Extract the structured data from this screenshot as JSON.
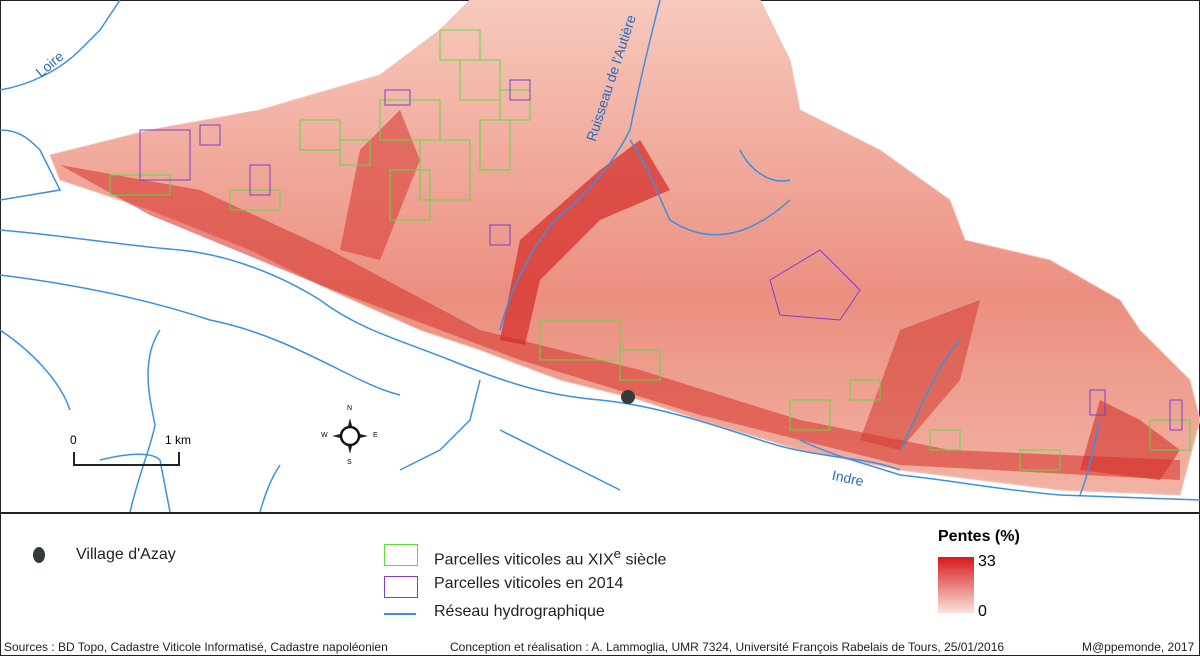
{
  "map": {
    "labels": {
      "loire": "Loire",
      "indre": "Indre",
      "ruisseau": "Ruisseau de l'Autière"
    },
    "scale": {
      "start": "0",
      "end": "1 km"
    },
    "compass": {
      "n": "N",
      "s": "S",
      "e": "E",
      "w": "W"
    },
    "colors": {
      "slope_high": "#d7191c",
      "slope_low": "#fbe3dc",
      "parcels_19th": "#5ddc3c",
      "parcels_2014": "#7a3fd0",
      "hydro": "#3d8fe0",
      "village": "#333c3c"
    }
  },
  "legend": {
    "village": "Village d'Azay",
    "parcels_19th": "Parcelles viticoles au XIX",
    "parcels_19th_sup": "e",
    "parcels_19th_suffix": " siècle",
    "parcels_2014": "Parcelles viticoles en 2014",
    "hydro": "Réseau hydrographique",
    "slope_title": "Pentes (%)",
    "slope_max": "33",
    "slope_min": "0"
  },
  "footer": {
    "sources": "Sources : BD Topo, Cadastre Viticole Informatisé, Cadastre napoléonien",
    "credits": "Conception et réalisation : A. Lammoglia, UMR 7324, Université François Rabelais de Tours, 25/01/2016",
    "publisher": "M@ppemonde, 2017"
  }
}
